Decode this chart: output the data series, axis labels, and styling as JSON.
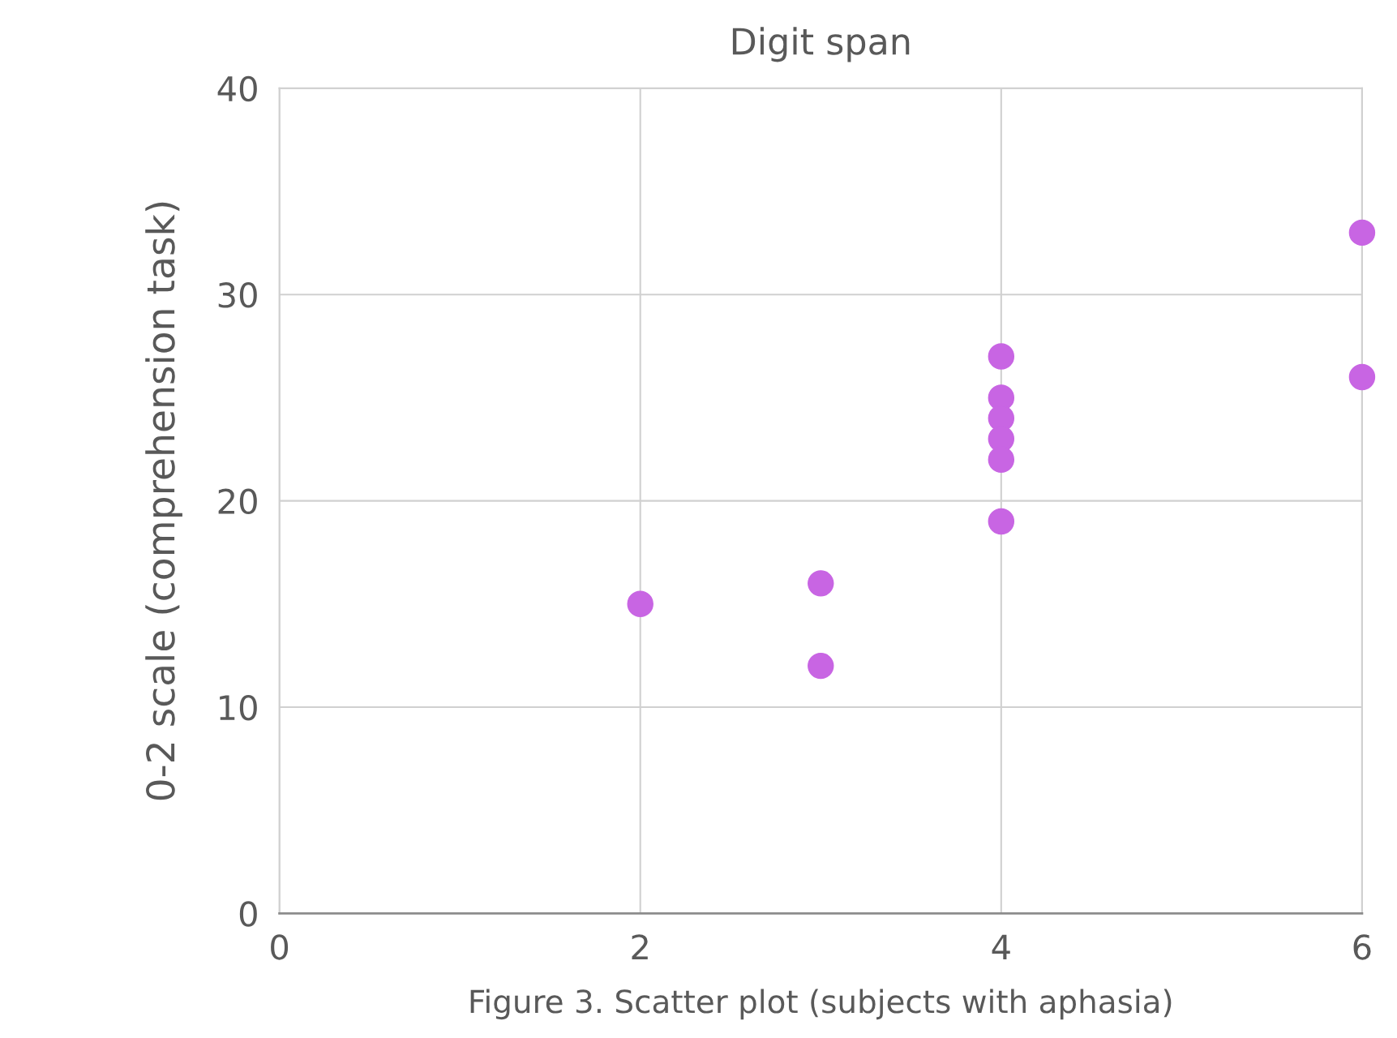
{
  "chart_data": {
    "type": "scatter",
    "title": "Digit span",
    "xlabel": "Figure 3. Scatter plot (subjects with aphasia)",
    "ylabel": "0-2 scale (comprehension task)",
    "series": [
      {
        "color": "#c865e3",
        "x": [
          2,
          3,
          3,
          4,
          4,
          4,
          4,
          4,
          4,
          6,
          6
        ],
        "values": [
          15,
          16,
          12,
          27,
          25,
          24,
          23,
          22,
          19,
          33,
          26
        ]
      }
    ],
    "xlim": [
      0,
      6
    ],
    "ylim": [
      0,
      40
    ],
    "xticks": [
      0,
      2,
      4,
      6
    ],
    "yticks": [
      0,
      10,
      20,
      30,
      40
    ],
    "grid": true,
    "marker": "circle"
  }
}
